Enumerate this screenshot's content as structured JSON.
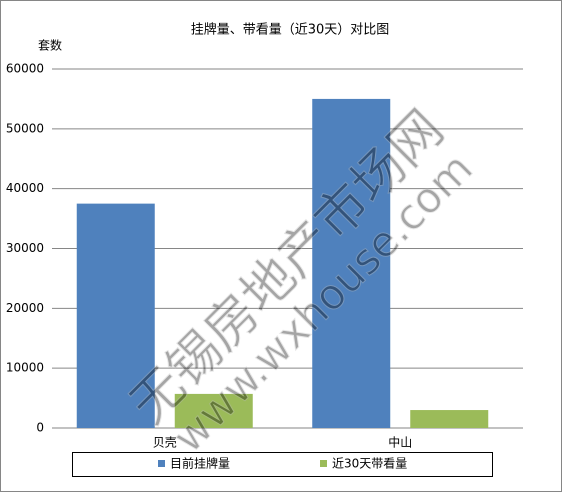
{
  "chart_data": {
    "type": "bar",
    "title": "挂牌量、带看量（近30天）对比图",
    "y_label": "套数",
    "categories": [
      "贝壳",
      "中山"
    ],
    "series": [
      {
        "name": "目前挂牌量",
        "color": "#4f81bd",
        "values": [
          37500,
          55000
        ]
      },
      {
        "name": "近30天带看量",
        "color": "#9bbb59",
        "values": [
          5700,
          3000
        ]
      }
    ],
    "ylim": [
      0,
      60000
    ],
    "yticks": [
      0,
      10000,
      20000,
      30000,
      40000,
      50000,
      60000
    ],
    "grid": true,
    "legend": "bottom",
    "watermark": [
      "无锡房地产市场网",
      "www.wxhouse.com"
    ]
  }
}
